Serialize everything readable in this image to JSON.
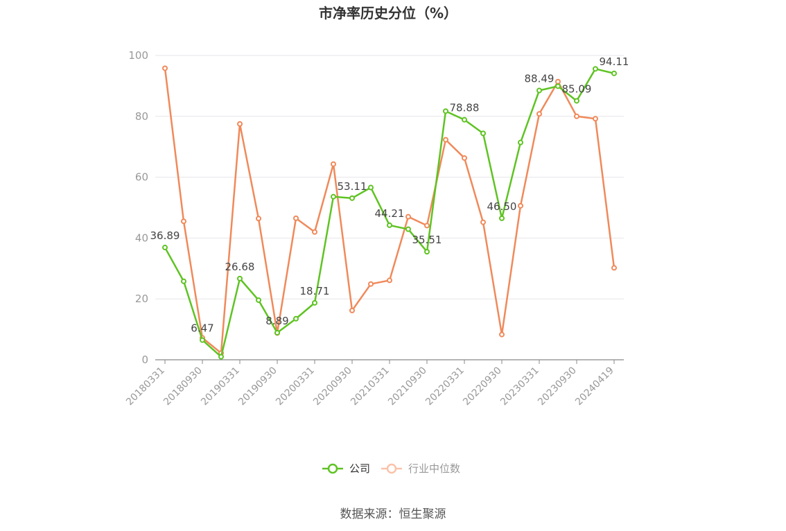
{
  "chart_data": {
    "type": "line",
    "title": "市净率历史分位（%）",
    "ylim": [
      0,
      100
    ],
    "y_ticks": [
      0,
      20,
      40,
      60,
      80,
      100
    ],
    "x_tick_labels": [
      "20180331",
      "20180930",
      "20190331",
      "20190930",
      "20200331",
      "20200930",
      "20210331",
      "20210930",
      "20220331",
      "20220930",
      "20230331",
      "20230930",
      "20240419"
    ],
    "x": [
      "20180331",
      "20180630",
      "20180930",
      "20181231",
      "20190331",
      "20190630",
      "20190930",
      "20191231",
      "20200331",
      "20200630",
      "20200930",
      "20201231",
      "20210331",
      "20210630",
      "20210930",
      "20211231",
      "20220331",
      "20220630",
      "20220930",
      "20221231",
      "20230331",
      "20230630",
      "20230930",
      "20231231",
      "20240419"
    ],
    "grid": true,
    "legend_position": "bottom",
    "series": [
      {
        "name": "公司",
        "color": "#5ec322",
        "values": [
          36.89,
          25.8,
          6.47,
          1.0,
          26.68,
          19.6,
          8.89,
          13.5,
          18.71,
          53.6,
          53.11,
          56.6,
          44.21,
          42.9,
          35.51,
          81.7,
          78.88,
          74.4,
          46.5,
          71.4,
          88.49,
          89.9,
          85.09,
          95.6,
          94.11
        ],
        "labels": {
          "0": "36.89",
          "2": "6.47",
          "4": "26.68",
          "6": "8.89",
          "8": "18.71",
          "10": "53.11",
          "12": "44.21",
          "14": "35.51",
          "16": "78.88",
          "18": "46.50",
          "20": "88.49",
          "22": "85.09",
          "24": "94.11"
        }
      },
      {
        "name": "行业中位数",
        "color": "#f0895a",
        "values": [
          95.8,
          45.5,
          7.2,
          2.2,
          77.5,
          46.4,
          8.8,
          46.5,
          42.0,
          64.3,
          16.2,
          24.9,
          26.1,
          47.0,
          44.1,
          72.3,
          66.3,
          45.2,
          8.3,
          50.6,
          80.8,
          91.4,
          80.0,
          79.2,
          30.2
        ]
      }
    ]
  },
  "source_text": "数据来源：恒生聚源"
}
